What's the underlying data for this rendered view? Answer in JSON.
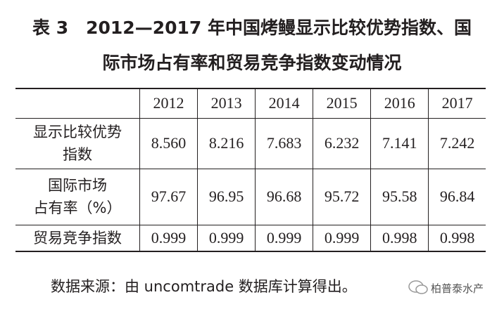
{
  "title": {
    "lines": [
      "表 3　2012—2017 年中国烤鳗显示比较优势指数、国",
      "际市场占有率和贸易竞争指数变动情况"
    ]
  },
  "table": {
    "header": [
      "",
      "2012",
      "2013",
      "2014",
      "2015",
      "2016",
      "2017"
    ],
    "rows": [
      {
        "label": [
          "显示比较优势",
          "指数"
        ],
        "cells": [
          "8.560",
          "8.216",
          "7.683",
          "6.232",
          "7.141",
          "7.242"
        ]
      },
      {
        "label": [
          "国际市场",
          "占有率（%）"
        ],
        "cells": [
          "97.67",
          "96.95",
          "96.68",
          "95.72",
          "95.58",
          "96.84"
        ]
      },
      {
        "label": [
          "贸易竞争指数"
        ],
        "cells": [
          "0.999",
          "0.999",
          "0.999",
          "0.999",
          "0.998",
          "0.998"
        ]
      }
    ]
  },
  "source": "数据来源：由 uncomtrade 数据库计算得出。",
  "watermark": "柏普泰水产"
}
